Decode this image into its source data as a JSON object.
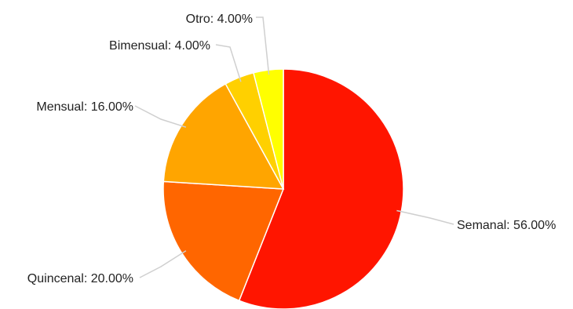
{
  "chart_data": {
    "type": "pie",
    "title": "",
    "unit": "%",
    "slices": [
      {
        "label": "Semanal",
        "value": 56.0,
        "display": "Semanal: 56.00%",
        "color": "#ff1500"
      },
      {
        "label": "Quincenal",
        "value": 20.0,
        "display": "Quincenal: 20.00%",
        "color": "#ff6600"
      },
      {
        "label": "Mensual",
        "value": 16.0,
        "display": "Mensual: 16.00%",
        "color": "#ffa500"
      },
      {
        "label": "Bimensual",
        "value": 4.0,
        "display": "Bimensual: 4.00%",
        "color": "#ffd000"
      },
      {
        "label": "Otro",
        "value": 4.0,
        "display": "Otro: 4.00%",
        "color": "#ffff00"
      }
    ],
    "start_angle": "12 o'clock",
    "direction": "clockwise",
    "legend": "none",
    "labels": "outside with leader lines"
  }
}
